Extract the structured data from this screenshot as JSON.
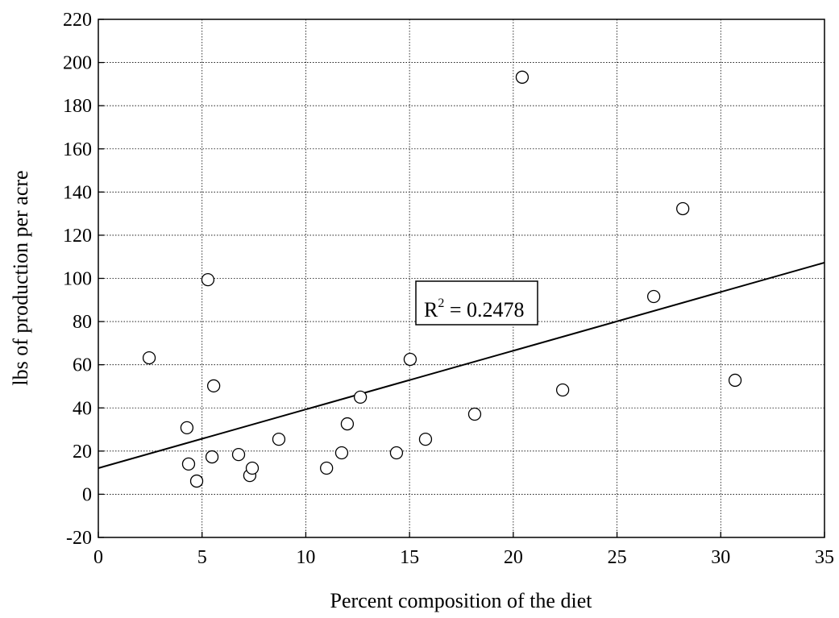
{
  "chart_data": {
    "type": "scatter",
    "xlabel": "Percent composition of the diet",
    "ylabel": "lbs of production per acre",
    "x": [
      2.45,
      4.27,
      4.35,
      4.74,
      5.28,
      5.48,
      5.56,
      6.76,
      7.3,
      7.42,
      8.7,
      11.0,
      11.73,
      12.0,
      12.63,
      14.37,
      15.03,
      15.77,
      18.14,
      20.43,
      22.38,
      26.77,
      28.17,
      30.69
    ],
    "values": [
      63.2,
      30.8,
      14.0,
      6.1,
      99.4,
      17.3,
      50.2,
      18.4,
      8.7,
      12.1,
      25.5,
      12.1,
      19.2,
      32.6,
      45.0,
      19.2,
      62.5,
      25.5,
      37.1,
      193.2,
      48.3,
      91.6,
      132.3,
      52.8
    ],
    "trendline": {
      "x": [
        0,
        35
      ],
      "y": [
        12.1,
        107.3
      ],
      "color": "#000000"
    },
    "annotation": {
      "base": "R",
      "sup": "2",
      "text": " = 0.2478"
    },
    "marker_edge": "#000000",
    "marker_fill": "#ffffff",
    "xlim": [
      0,
      35
    ],
    "xticks": [
      0,
      5,
      10,
      15,
      20,
      25,
      30,
      35
    ],
    "ylim": [
      -20,
      220
    ],
    "yticks": [
      -20,
      0,
      20,
      40,
      60,
      80,
      100,
      120,
      140,
      160,
      180,
      200,
      220
    ],
    "grid": true
  }
}
